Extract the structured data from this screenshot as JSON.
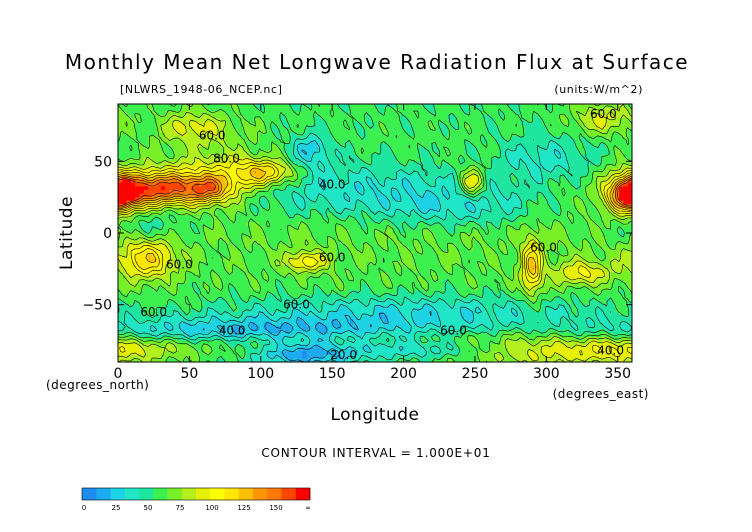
{
  "chart_data": {
    "type": "heatmap",
    "title": "Monthly Mean Net Longwave Radiation Flux at Surface",
    "subtitle_left": "[NLWRS_1948-06_NCEP.nc]",
    "subtitle_right": "(units:W/m^2)",
    "xlabel": "Longitude",
    "ylabel": "Latitude",
    "x_unit_label": "(degrees_east)",
    "y_unit_label": "(degrees_north)",
    "xlim": [
      0,
      360
    ],
    "ylim": [
      -90,
      90
    ],
    "x_ticks": [
      0,
      50,
      100,
      150,
      200,
      250,
      300,
      350
    ],
    "y_ticks": [
      50,
      0,
      -50
    ],
    "y_tick_labels": [
      "50",
      "0",
      "−50"
    ],
    "contour_interval_text": "CONTOUR INTERVAL = 1.000E+01",
    "contour_labels": [
      {
        "text": "60.0",
        "lon": 66,
        "lat": 68
      },
      {
        "text": "80.0",
        "lon": 76,
        "lat": 52
      },
      {
        "text": "40.0",
        "lon": 150,
        "lat": 34
      },
      {
        "text": "60.0",
        "lon": 150,
        "lat": -17
      },
      {
        "text": "60.0",
        "lon": 43,
        "lat": -22
      },
      {
        "text": "60.0",
        "lon": 125,
        "lat": -50
      },
      {
        "text": "60.0",
        "lon": 25,
        "lat": -55
      },
      {
        "text": "60.0",
        "lon": 340,
        "lat": 83
      },
      {
        "text": "60.0",
        "lon": 298,
        "lat": -10
      },
      {
        "text": "40.0",
        "lon": 80,
        "lat": -68
      },
      {
        "text": "60.0",
        "lon": 235,
        "lat": -68
      },
      {
        "text": "20.0",
        "lon": 158,
        "lat": -85
      },
      {
        "text": "40.0",
        "lon": 345,
        "lat": -82
      }
    ],
    "colorbar": {
      "ticks": [
        "0",
        "25",
        "50",
        "75",
        "100",
        "125",
        "150",
        "∞"
      ],
      "levels": [
        0,
        10,
        20,
        30,
        40,
        50,
        60,
        70,
        80,
        90,
        100,
        110,
        120,
        130,
        140,
        150,
        160
      ],
      "colors": [
        "#1e8cf0",
        "#1eaaf0",
        "#1ed2e6",
        "#20e6c8",
        "#1ee6a0",
        "#3cf050",
        "#78f028",
        "#b4f01e",
        "#e6f000",
        "#ffff00",
        "#ffe600",
        "#ffbe00",
        "#ff9600",
        "#ff7800",
        "#ff4600",
        "#ff0000"
      ]
    }
  }
}
